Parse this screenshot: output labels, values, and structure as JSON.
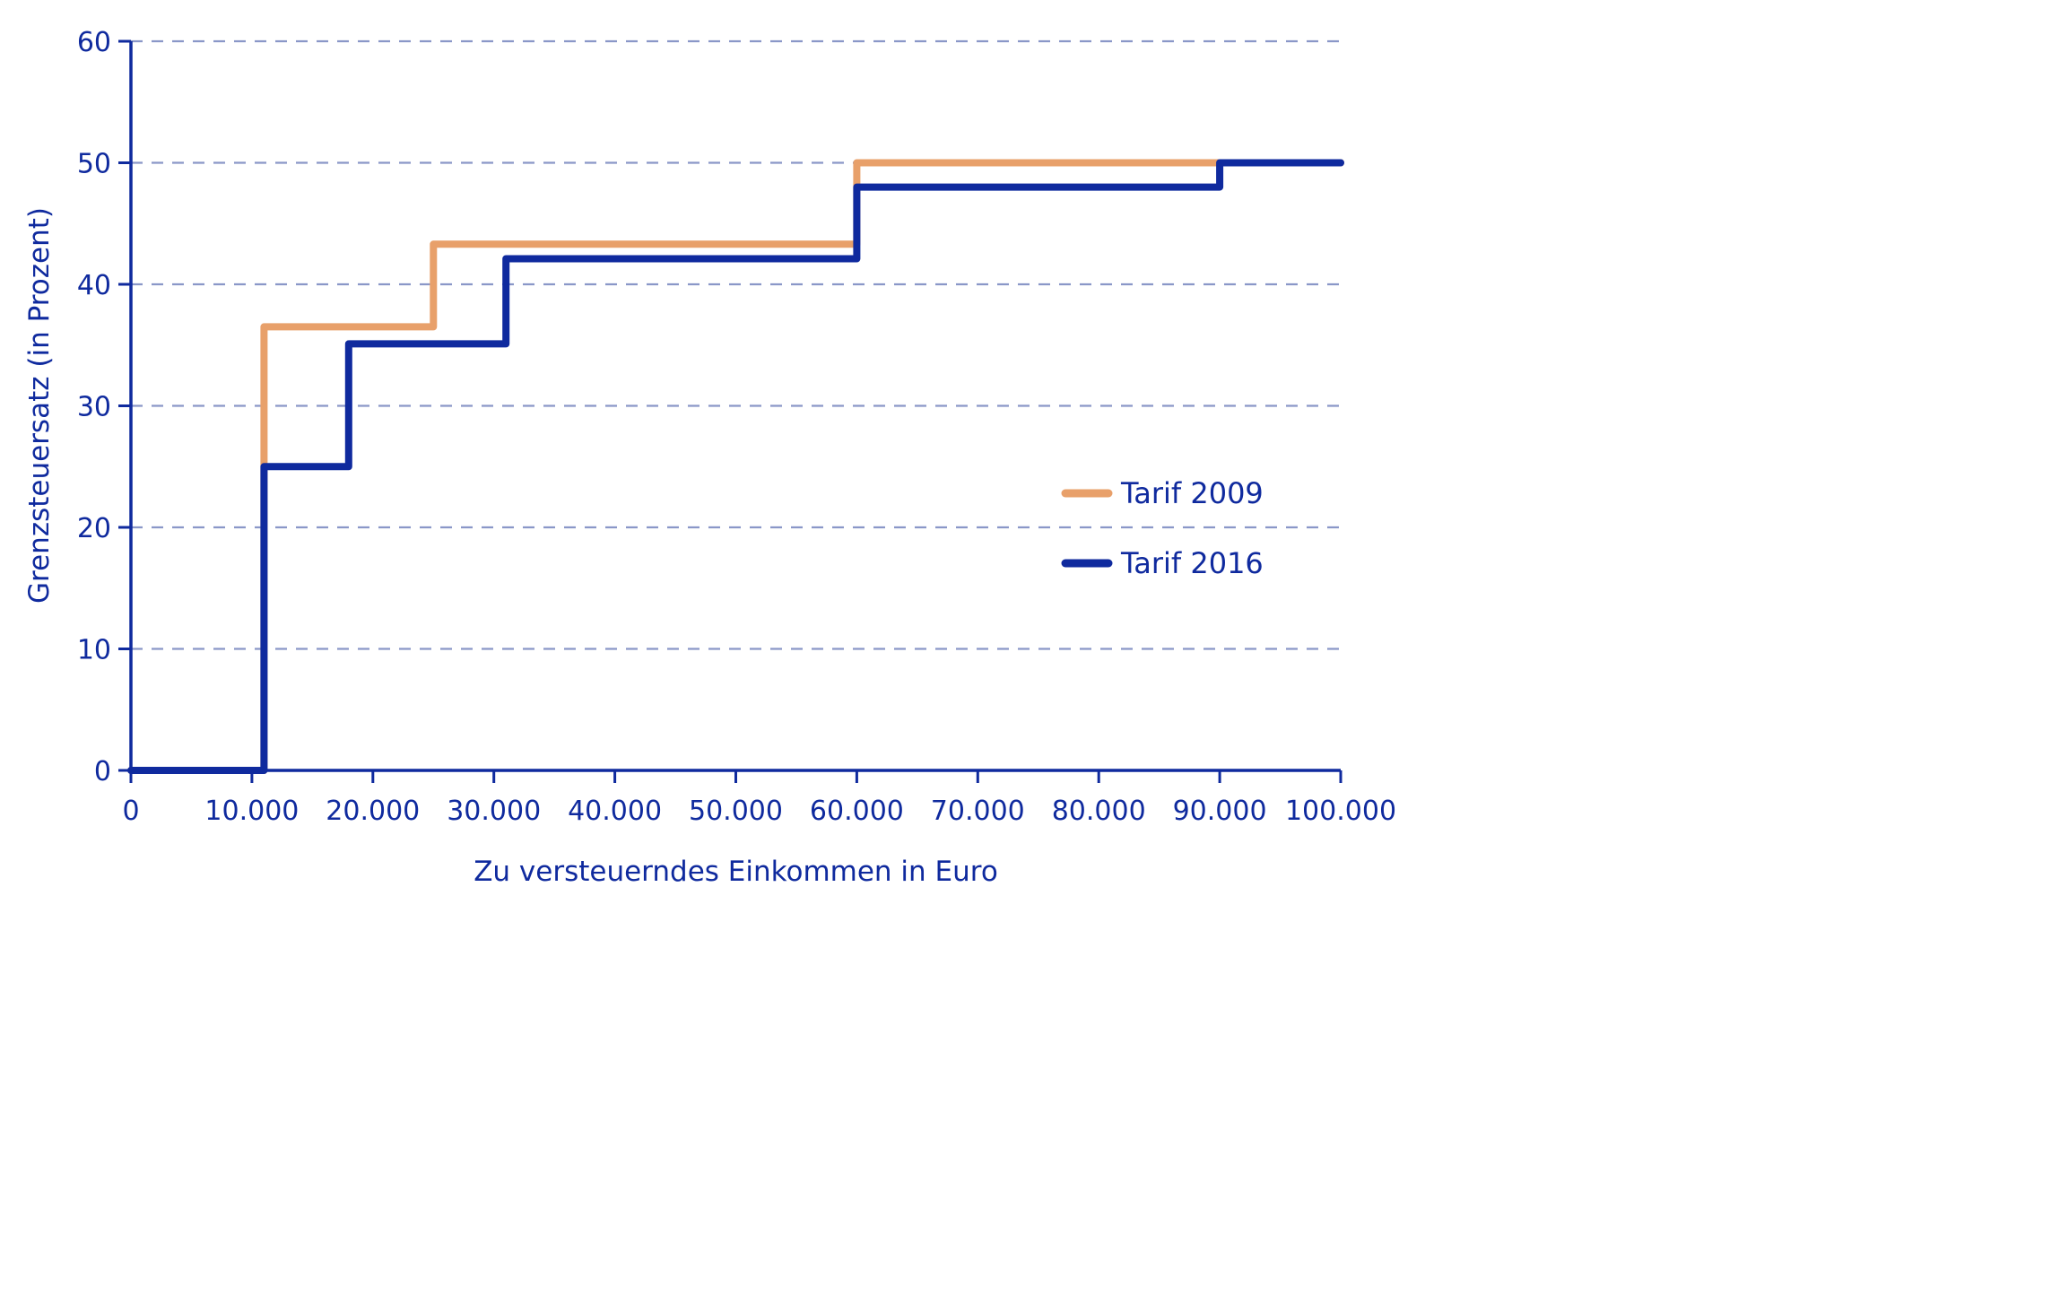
{
  "chart_data": {
    "type": "line",
    "step": true,
    "xlabel": "Zu versteuerndes Einkommen in Euro",
    "ylabel": "Grenzsteuersatz (in Prozent)",
    "xlim": [
      0,
      100000
    ],
    "ylim": [
      0,
      60
    ],
    "x_ticks": [
      0,
      10000,
      20000,
      30000,
      40000,
      50000,
      60000,
      70000,
      80000,
      90000,
      100000
    ],
    "x_tick_labels": [
      "0",
      "10.000",
      "20.000",
      "30.000",
      "40.000",
      "50.000",
      "60.000",
      "70.000",
      "80.000",
      "90.000",
      "100.000"
    ],
    "y_ticks": [
      0,
      10,
      20,
      30,
      40,
      50,
      60
    ],
    "y_tick_labels": [
      "0",
      "10",
      "20",
      "30",
      "40",
      "50",
      "60"
    ],
    "grid": "horizontal-dashed",
    "legend_position": "right-middle",
    "colors": {
      "axis": "#0f2a9e",
      "grid": "#8a97c8",
      "text": "#0f2a9e"
    },
    "series": [
      {
        "name": "Tarif 2009",
        "color": "#e8a06a",
        "points": [
          [
            0,
            0
          ],
          [
            11000,
            0
          ],
          [
            11000,
            36.5
          ],
          [
            25000,
            36.5
          ],
          [
            25000,
            43.3
          ],
          [
            60000,
            43.3
          ],
          [
            60000,
            50
          ],
          [
            100000,
            50
          ]
        ]
      },
      {
        "name": "Tarif 2016",
        "color": "#0f2a9e",
        "points": [
          [
            0,
            0
          ],
          [
            11000,
            0
          ],
          [
            11000,
            25
          ],
          [
            18000,
            25
          ],
          [
            18000,
            35.1
          ],
          [
            31000,
            35.1
          ],
          [
            31000,
            42.1
          ],
          [
            60000,
            42.1
          ],
          [
            60000,
            48
          ],
          [
            90000,
            48
          ],
          [
            90000,
            50
          ],
          [
            100000,
            50
          ]
        ]
      }
    ]
  }
}
